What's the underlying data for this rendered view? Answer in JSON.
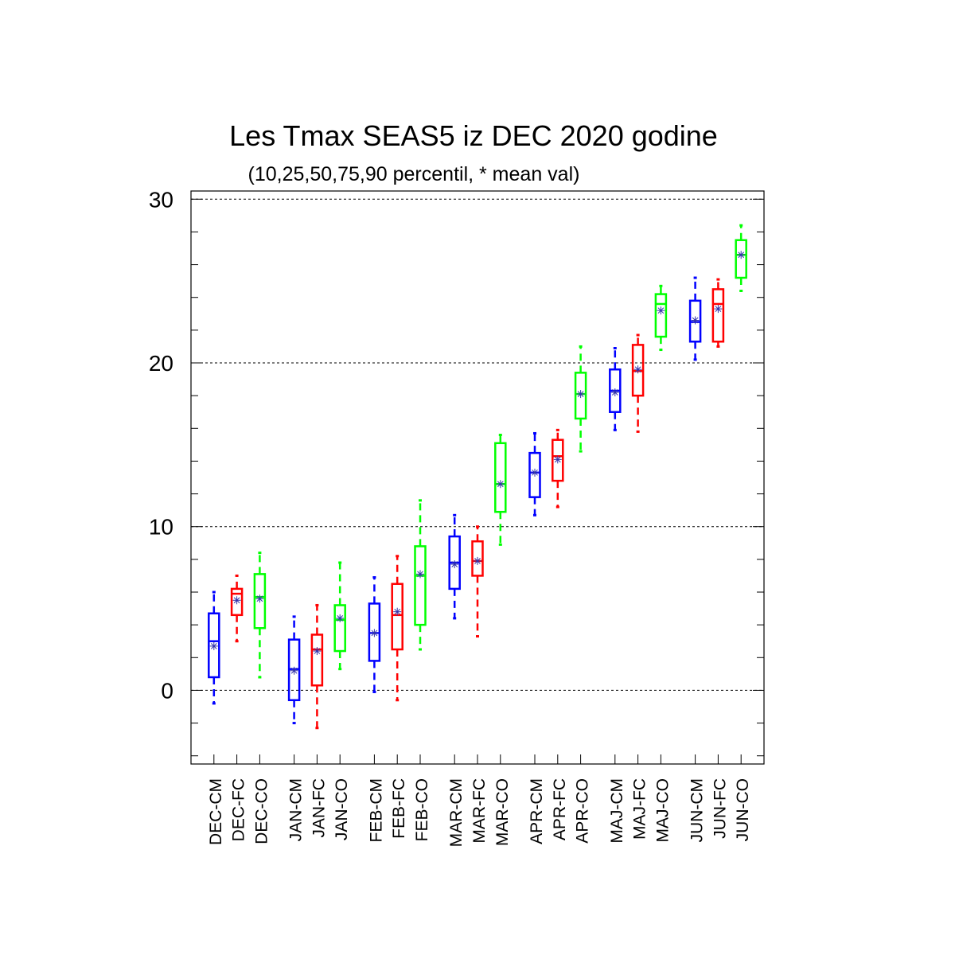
{
  "chart_data": {
    "type": "boxplot",
    "title": "Les Tmax SEAS5 iz DEC 2020 godine",
    "subtitle": "(10,25,50,75,90 percentil, * mean val)",
    "ylim": [
      -4.5,
      30.5
    ],
    "yticks": [
      0,
      10,
      20,
      30
    ],
    "grid": "horizontal dashed at major ticks",
    "colors": {
      "CM": "#0000ff",
      "FC": "#ff0000",
      "CO": "#00ff00"
    },
    "boxes": [
      {
        "label": "DEC-CM",
        "p10": -0.8,
        "p25": 0.8,
        "median": 3.0,
        "p75": 4.7,
        "p90": 6.0,
        "mean": 2.7
      },
      {
        "label": "DEC-FC",
        "p10": 3.0,
        "p25": 4.6,
        "median": 5.9,
        "p75": 6.2,
        "p90": 7.0,
        "mean": 5.5
      },
      {
        "label": "DEC-CO",
        "p10": 0.8,
        "p25": 3.8,
        "median": 5.7,
        "p75": 7.1,
        "p90": 8.4,
        "mean": 5.6
      },
      {
        "label": "JAN-CM",
        "p10": -2.0,
        "p25": -0.6,
        "median": 1.3,
        "p75": 3.1,
        "p90": 4.5,
        "mean": 1.2
      },
      {
        "label": "JAN-FC",
        "p10": -2.3,
        "p25": 0.3,
        "median": 2.5,
        "p75": 3.4,
        "p90": 5.2,
        "mean": 2.4
      },
      {
        "label": "JAN-CO",
        "p10": 1.3,
        "p25": 2.4,
        "median": 4.3,
        "p75": 5.2,
        "p90": 7.8,
        "mean": 4.4
      },
      {
        "label": "FEB-CM",
        "p10": -0.1,
        "p25": 1.8,
        "median": 3.5,
        "p75": 5.3,
        "p90": 6.9,
        "mean": 3.5
      },
      {
        "label": "FEB-FC",
        "p10": -0.6,
        "p25": 2.5,
        "median": 4.6,
        "p75": 6.5,
        "p90": 8.2,
        "mean": 4.8
      },
      {
        "label": "FEB-CO",
        "p10": 2.5,
        "p25": 4.0,
        "median": 7.0,
        "p75": 8.8,
        "p90": 11.6,
        "mean": 7.1
      },
      {
        "label": "MAR-CM",
        "p10": 4.4,
        "p25": 6.2,
        "median": 7.8,
        "p75": 9.4,
        "p90": 10.7,
        "mean": 7.7
      },
      {
        "label": "MAR-FC",
        "p10": 3.3,
        "p25": 7.0,
        "median": 7.9,
        "p75": 9.1,
        "p90": 10.0,
        "mean": 7.9
      },
      {
        "label": "MAR-CO",
        "p10": 8.9,
        "p25": 10.9,
        "median": 12.6,
        "p75": 15.1,
        "p90": 15.6,
        "mean": 12.6
      },
      {
        "label": "APR-CM",
        "p10": 10.7,
        "p25": 11.8,
        "median": 13.3,
        "p75": 14.5,
        "p90": 15.7,
        "mean": 13.3
      },
      {
        "label": "APR-FC",
        "p10": 11.2,
        "p25": 12.8,
        "median": 14.3,
        "p75": 15.3,
        "p90": 15.9,
        "mean": 14.1
      },
      {
        "label": "APR-CO",
        "p10": 14.6,
        "p25": 16.6,
        "median": 18.1,
        "p75": 19.4,
        "p90": 21.0,
        "mean": 18.1
      },
      {
        "label": "MAJ-CM",
        "p10": 15.9,
        "p25": 17.0,
        "median": 18.3,
        "p75": 19.6,
        "p90": 20.9,
        "mean": 18.2
      },
      {
        "label": "MAJ-FC",
        "p10": 15.8,
        "p25": 18.0,
        "median": 19.5,
        "p75": 21.1,
        "p90": 21.7,
        "mean": 19.6
      },
      {
        "label": "MAJ-CO",
        "p10": 20.8,
        "p25": 21.6,
        "median": 23.6,
        "p75": 24.2,
        "p90": 24.7,
        "mean": 23.2
      },
      {
        "label": "JUN-CM",
        "p10": 20.2,
        "p25": 21.3,
        "median": 22.5,
        "p75": 23.8,
        "p90": 25.2,
        "mean": 22.6
      },
      {
        "label": "JUN-FC",
        "p10": 21.0,
        "p25": 21.3,
        "median": 23.6,
        "p75": 24.5,
        "p90": 25.1,
        "mean": 23.3
      },
      {
        "label": "JUN-CO",
        "p10": 24.4,
        "p25": 25.2,
        "median": 26.6,
        "p75": 27.5,
        "p90": 28.4,
        "mean": 26.6
      }
    ]
  }
}
